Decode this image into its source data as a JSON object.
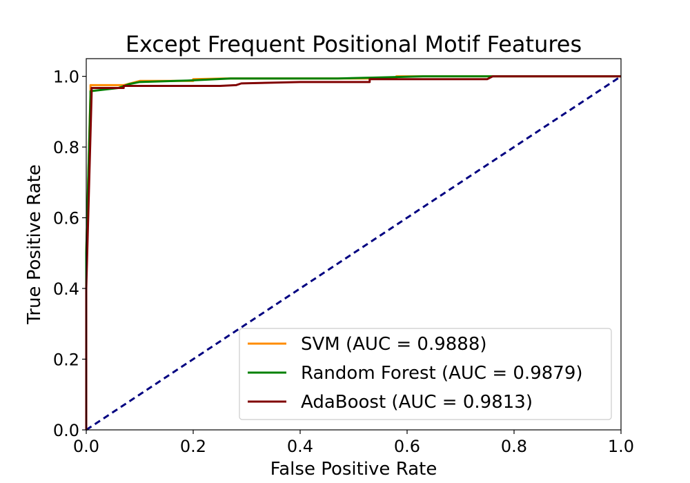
{
  "chart_data": {
    "type": "line",
    "title": "Except Frequent Positional Motif Features",
    "xlabel": "False Positive Rate",
    "ylabel": "True Positive Rate",
    "xlim": [
      0.0,
      1.0
    ],
    "ylim": [
      0.0,
      1.05
    ],
    "xticks": [
      "0.0",
      "0.2",
      "0.4",
      "0.6",
      "0.8",
      "1.0"
    ],
    "yticks": [
      "0.0",
      "0.2",
      "0.4",
      "0.6",
      "0.8",
      "1.0"
    ],
    "grid": false,
    "legend_position": "lower-right",
    "series": [
      {
        "name": "SVM (AUC = 0.9888)",
        "color": "#ff8c00",
        "x": [
          0.0,
          0.0,
          0.008,
          0.008,
          0.07,
          0.1,
          0.2,
          0.2,
          0.26,
          0.58,
          0.58,
          0.75,
          1.0
        ],
        "y": [
          0.0,
          0.5,
          0.96,
          0.975,
          0.975,
          0.987,
          0.987,
          0.992,
          0.994,
          0.994,
          1.0,
          1.0,
          1.0
        ]
      },
      {
        "name": "Random Forest (AUC = 0.9879)",
        "color": "#008000",
        "x": [
          0.0,
          0.0,
          0.008,
          0.008,
          0.06,
          0.08,
          0.1,
          0.19,
          0.27,
          0.47,
          0.53,
          0.63,
          1.0
        ],
        "y": [
          0.0,
          0.5,
          0.95,
          0.958,
          0.967,
          0.978,
          0.984,
          0.988,
          0.994,
          0.994,
          0.996,
          1.0,
          1.0
        ]
      },
      {
        "name": "AdaBoost (AUC = 0.9813)",
        "color": "#800000",
        "x": [
          0.0,
          0.0,
          0.01,
          0.01,
          0.07,
          0.07,
          0.25,
          0.28,
          0.29,
          0.4,
          0.53,
          0.53,
          0.75,
          0.76,
          1.0
        ],
        "y": [
          0.0,
          0.4,
          0.95,
          0.967,
          0.967,
          0.973,
          0.973,
          0.975,
          0.98,
          0.984,
          0.984,
          0.992,
          0.992,
          1.0,
          1.0
        ]
      }
    ],
    "reference_line": {
      "color": "#000080",
      "style": "dashed",
      "x": [
        0.0,
        1.0
      ],
      "y": [
        0.0,
        1.0
      ]
    }
  }
}
